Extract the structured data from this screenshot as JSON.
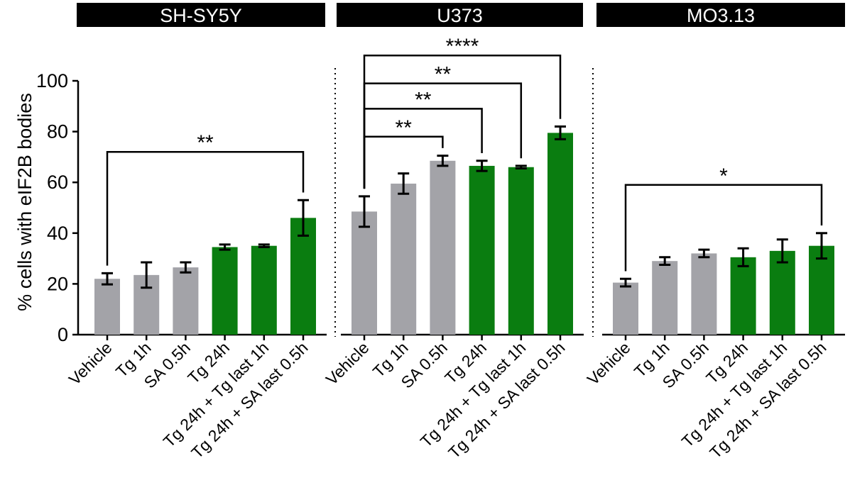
{
  "y_axis_label": "% cells with eIF2B bodies",
  "y_ticks": [
    0,
    20,
    40,
    60,
    80,
    100
  ],
  "categories": [
    "Vehicle",
    "Tg 1h",
    "SA 0.5h",
    "Tg 24h",
    "Tg 24h + Tg last 1h",
    "Tg 24h + SA last 0.5h"
  ],
  "colors": {
    "grey": "#a3a3a8",
    "green": "#0a7d10",
    "header": "#000000",
    "header_text": "#ffffff"
  },
  "chart_data": [
    {
      "type": "bar",
      "title": "SH-SY5Y",
      "categories": [
        "Vehicle",
        "Tg 1h",
        "SA 0.5h",
        "Tg 24h",
        "Tg 24h + Tg last 1h",
        "Tg 24h + SA last 0.5h"
      ],
      "values": [
        22,
        23.5,
        26.5,
        34.5,
        35,
        46
      ],
      "errors": [
        2.2,
        5,
        2,
        1,
        0.5,
        7
      ],
      "bar_colors": [
        "grey",
        "grey",
        "grey",
        "green",
        "green",
        "green"
      ],
      "ylabel": "% cells with eIF2B bodies",
      "ylim": [
        0,
        100
      ],
      "significance": [
        {
          "from": 0,
          "to": 5,
          "label": "**",
          "level": 72
        }
      ]
    },
    {
      "type": "bar",
      "title": "U373",
      "categories": [
        "Vehicle",
        "Tg 1h",
        "SA 0.5h",
        "Tg 24h",
        "Tg 24h + Tg last 1h",
        "Tg 24h + SA last 0.5h"
      ],
      "values": [
        48.5,
        59.5,
        68.5,
        66.5,
        66,
        79.5
      ],
      "errors": [
        6,
        4,
        2,
        2,
        0.5,
        2.5
      ],
      "bar_colors": [
        "grey",
        "grey",
        "grey",
        "green",
        "green",
        "green"
      ],
      "ylabel": "% cells with eIF2B bodies",
      "ylim": [
        0,
        100
      ],
      "significance": [
        {
          "from": 0,
          "to": 2,
          "label": "**",
          "level": 78
        },
        {
          "from": 0,
          "to": 3,
          "label": "**",
          "level": 89
        },
        {
          "from": 0,
          "to": 4,
          "label": "**",
          "level": 99
        },
        {
          "from": 0,
          "to": 5,
          "label": "****",
          "level": 110
        }
      ]
    },
    {
      "type": "bar",
      "title": "MO3.13",
      "categories": [
        "Vehicle",
        "Tg 1h",
        "SA 0.5h",
        "Tg 24h",
        "Tg 24h + Tg last 1h",
        "Tg 24h + SA last 0.5h"
      ],
      "values": [
        20.5,
        29,
        32,
        30.5,
        33,
        35
      ],
      "errors": [
        1.5,
        1.5,
        1.5,
        3.5,
        4.5,
        5
      ],
      "bar_colors": [
        "grey",
        "grey",
        "grey",
        "green",
        "green",
        "green"
      ],
      "ylabel": "% cells with eIF2B bodies",
      "ylim": [
        0,
        100
      ],
      "significance": [
        {
          "from": 0,
          "to": 5,
          "label": "*",
          "level": 59
        }
      ]
    }
  ]
}
